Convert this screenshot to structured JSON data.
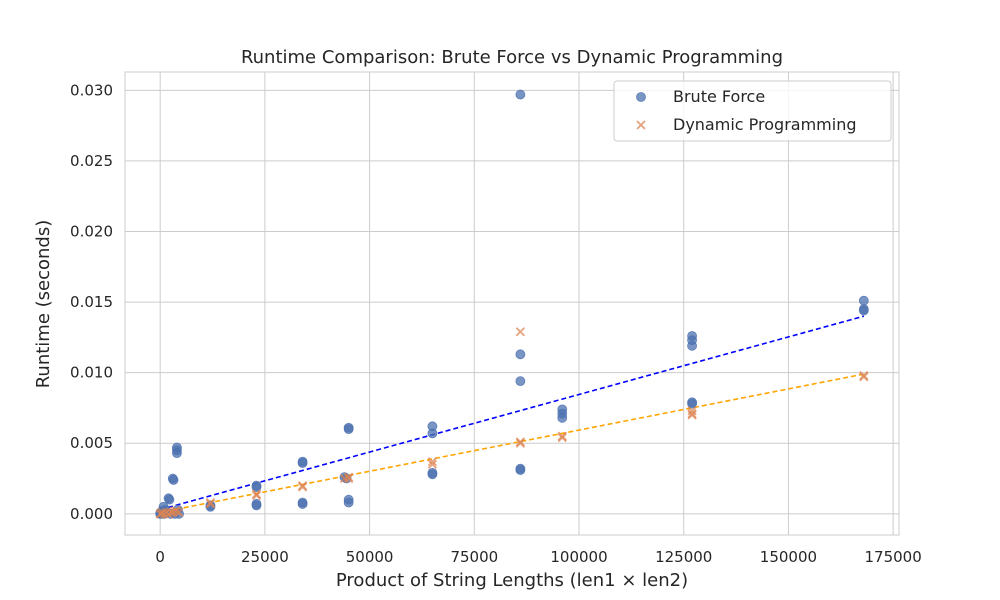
{
  "chart_data": {
    "type": "scatter",
    "title": "Runtime Comparison: Brute Force vs Dynamic Programming",
    "xlabel": "Product of String Lengths (len1 × len2)",
    "ylabel": "Runtime (seconds)",
    "xlim": [
      -8400,
      176400
    ],
    "ylim": [
      -0.0015,
      0.0313
    ],
    "xticks": [
      0,
      25000,
      50000,
      75000,
      100000,
      125000,
      150000,
      175000
    ],
    "xtick_labels": [
      "0",
      "25000",
      "50000",
      "75000",
      "100000",
      "125000",
      "150000",
      "175000"
    ],
    "yticks": [
      0.0,
      0.005,
      0.01,
      0.015,
      0.02,
      0.025,
      0.03
    ],
    "ytick_labels": [
      "0.000",
      "0.005",
      "0.010",
      "0.015",
      "0.020",
      "0.025",
      "0.030"
    ],
    "grid": true,
    "legend_position": "top-right",
    "series": [
      {
        "name": "Brute Force",
        "marker": "circle",
        "color": "#4c72b0",
        "points": [
          [
            0,
            0.0
          ],
          [
            100,
            0.0001
          ],
          [
            200,
            0.0
          ],
          [
            500,
            0.0002
          ],
          [
            800,
            0.0005
          ],
          [
            1000,
            0.0
          ],
          [
            1200,
            0.0003
          ],
          [
            1500,
            0.0001
          ],
          [
            2000,
            0.0011
          ],
          [
            2200,
            0.001
          ],
          [
            2500,
            0.0
          ],
          [
            3000,
            0.0025
          ],
          [
            3200,
            0.0024
          ],
          [
            3500,
            0.0
          ],
          [
            4000,
            0.0047
          ],
          [
            4000,
            0.0045
          ],
          [
            4000,
            0.0043
          ],
          [
            4200,
            0.0003
          ],
          [
            4500,
            0.0
          ],
          [
            12000,
            0.0006
          ],
          [
            12000,
            0.0005
          ],
          [
            23000,
            0.002
          ],
          [
            23000,
            0.0019
          ],
          [
            23000,
            0.0007
          ],
          [
            23000,
            0.0006
          ],
          [
            34000,
            0.0037
          ],
          [
            34000,
            0.0036
          ],
          [
            34000,
            0.0008
          ],
          [
            34000,
            0.0007
          ],
          [
            44000,
            0.0026
          ],
          [
            44500,
            0.0025
          ],
          [
            45000,
            0.0061
          ],
          [
            45000,
            0.006
          ],
          [
            45000,
            0.001
          ],
          [
            45000,
            0.0008
          ],
          [
            65000,
            0.0062
          ],
          [
            65000,
            0.0057
          ],
          [
            65000,
            0.0029
          ],
          [
            65000,
            0.0028
          ],
          [
            86000,
            0.0297
          ],
          [
            86000,
            0.0113
          ],
          [
            86000,
            0.0094
          ],
          [
            86000,
            0.0032
          ],
          [
            86000,
            0.0031
          ],
          [
            96000,
            0.0074
          ],
          [
            96000,
            0.0071
          ],
          [
            96000,
            0.0068
          ],
          [
            127000,
            0.0126
          ],
          [
            127000,
            0.0123
          ],
          [
            127000,
            0.0119
          ],
          [
            127000,
            0.0079
          ],
          [
            127000,
            0.0078
          ],
          [
            168000,
            0.0151
          ],
          [
            168000,
            0.0145
          ],
          [
            168000,
            0.0144
          ]
        ]
      },
      {
        "name": "Dynamic Programming",
        "marker": "x",
        "color": "#dd8452",
        "points": [
          [
            0,
            0.0
          ],
          [
            200,
            0.0
          ],
          [
            500,
            0.0001
          ],
          [
            1000,
            0.0
          ],
          [
            1500,
            0.0001
          ],
          [
            2000,
            0.0
          ],
          [
            2500,
            0.0001
          ],
          [
            3000,
            0.0001
          ],
          [
            3500,
            0.0002
          ],
          [
            4000,
            0.0002
          ],
          [
            4500,
            0.0001
          ],
          [
            12000,
            0.0008
          ],
          [
            12000,
            0.0007
          ],
          [
            23000,
            0.0014
          ],
          [
            23000,
            0.0013
          ],
          [
            34000,
            0.002
          ],
          [
            34000,
            0.0019
          ],
          [
            44000,
            0.0025
          ],
          [
            45000,
            0.0026
          ],
          [
            45000,
            0.0025
          ],
          [
            65000,
            0.0037
          ],
          [
            65000,
            0.0035
          ],
          [
            86000,
            0.0129
          ],
          [
            86000,
            0.0051
          ],
          [
            86000,
            0.005
          ],
          [
            96000,
            0.0055
          ],
          [
            96000,
            0.0054
          ],
          [
            127000,
            0.0073
          ],
          [
            127000,
            0.0071
          ],
          [
            127000,
            0.007
          ],
          [
            168000,
            0.0098
          ],
          [
            168000,
            0.0097
          ]
        ]
      }
    ],
    "trend_lines": [
      {
        "series": "Brute Force",
        "color": "#0000ff",
        "x": [
          0,
          168000
        ],
        "y": [
          0.0003,
          0.014
        ]
      },
      {
        "series": "Dynamic Programming",
        "color": "#ffa500",
        "x": [
          0,
          168000
        ],
        "y": [
          0.0001,
          0.0099
        ]
      }
    ]
  }
}
